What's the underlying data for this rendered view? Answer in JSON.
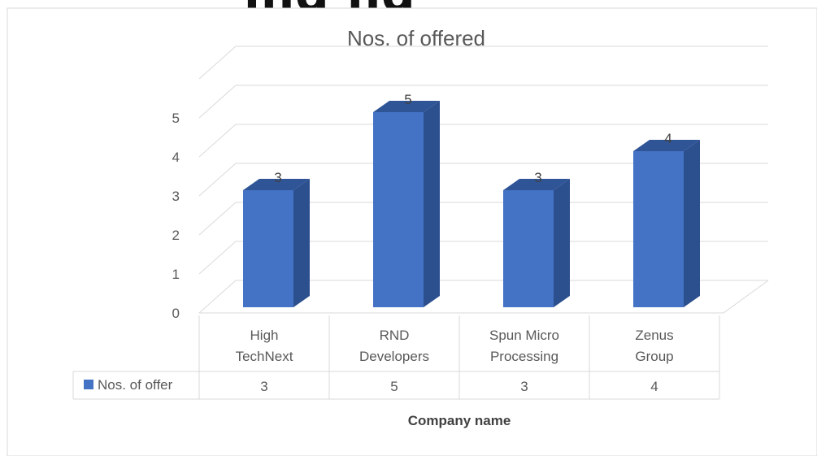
{
  "chart_data": {
    "type": "bar",
    "style": "3d-column-with-data-table",
    "title": "Nos. of offered",
    "cut_off_heading": "ing ng",
    "categories": [
      "High TechNext",
      "RND Developers",
      "Spun Micro Processing",
      "Zenus Group"
    ],
    "category_lines": [
      [
        "High",
        "TechNext"
      ],
      [
        "RND",
        "Developers"
      ],
      [
        "Spun Micro",
        "Processing"
      ],
      [
        "Zenus",
        "Group"
      ]
    ],
    "series": [
      {
        "name": "Nos. of offer",
        "values": [
          3,
          5,
          3,
          4
        ]
      }
    ],
    "data_labels": [
      "3",
      "5",
      "3",
      "4"
    ],
    "yticks": [
      "0",
      "1",
      "2",
      "3",
      "4",
      "5"
    ],
    "ylim": [
      0,
      5
    ],
    "xlabel": "Company name",
    "ylabel": "",
    "grid": true,
    "legend": "data-table-left",
    "colors": {
      "front": "#4472C4",
      "side": "#2C4F8E",
      "top": "#2F5597",
      "grid": "#D9D9D9",
      "text": "#595959"
    }
  }
}
